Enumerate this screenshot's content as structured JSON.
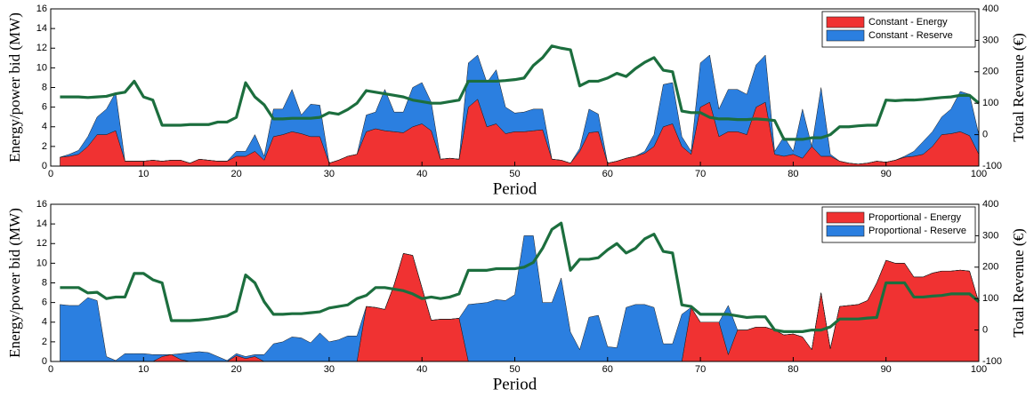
{
  "chart_data": [
    {
      "type": "area",
      "x": [
        1,
        2,
        3,
        4,
        5,
        6,
        7,
        8,
        9,
        10,
        11,
        12,
        13,
        14,
        15,
        16,
        17,
        18,
        19,
        20,
        21,
        22,
        23,
        24,
        25,
        26,
        27,
        28,
        29,
        30,
        31,
        32,
        33,
        34,
        35,
        36,
        37,
        38,
        39,
        40,
        41,
        42,
        43,
        44,
        45,
        46,
        47,
        48,
        49,
        50,
        51,
        52,
        53,
        54,
        55,
        56,
        57,
        58,
        59,
        60,
        61,
        62,
        63,
        64,
        65,
        66,
        67,
        68,
        69,
        70,
        71,
        72,
        73,
        74,
        75,
        76,
        77,
        78,
        79,
        80,
        81,
        82,
        83,
        84,
        85,
        86,
        87,
        88,
        89,
        90,
        91,
        92,
        93,
        94,
        95,
        96,
        97,
        98,
        99,
        100
      ],
      "xlabel": "Period",
      "ylabel": "Energy/power bid (MW)",
      "y2label": "Total Revenue (€)",
      "xlim": [
        0,
        100
      ],
      "xticks": [
        0,
        10,
        20,
        30,
        40,
        50,
        60,
        70,
        80,
        90,
        100
      ],
      "ylim": [
        0,
        16
      ],
      "yticks": [
        0,
        2,
        4,
        6,
        8,
        10,
        12,
        14,
        16
      ],
      "y2lim": [
        -100,
        400
      ],
      "y2ticks": [
        -100,
        0,
        100,
        200,
        300,
        400
      ],
      "legend": "upper right",
      "series": [
        {
          "name": "Constant - Energy",
          "color": "#f03232",
          "values": [
            0.9,
            1.0,
            1.2,
            2.0,
            3.2,
            3.2,
            3.6,
            0.5,
            0.5,
            0.5,
            0.6,
            0.5,
            0.6,
            0.6,
            0.3,
            0.7,
            0.6,
            0.5,
            0.5,
            1.0,
            1.0,
            1.5,
            0.6,
            3.0,
            3.2,
            3.5,
            3.3,
            3.0,
            3.0,
            0.3,
            0.6,
            1.0,
            1.2,
            3.5,
            3.8,
            3.6,
            3.5,
            3.4,
            4.0,
            4.3,
            3.6,
            0.7,
            0.8,
            0.7,
            6.0,
            6.8,
            4.0,
            4.3,
            3.3,
            3.5,
            3.5,
            3.6,
            3.7,
            0.7,
            0.6,
            0.3,
            1.5,
            3.4,
            3.5,
            0.3,
            0.5,
            0.8,
            1.0,
            1.3,
            2.0,
            4.0,
            4.3,
            2.0,
            1.2,
            6.0,
            6.5,
            3.0,
            3.5,
            3.5,
            3.2,
            6.0,
            6.5,
            1.2,
            1.0,
            1.2,
            0.8,
            2.0,
            1.0,
            1.0,
            0.5,
            0.3,
            0.2,
            0.3,
            0.5,
            0.4,
            0.6,
            0.9,
            1.0,
            1.2,
            2.0,
            3.2,
            3.3,
            3.5,
            3.1,
            1.2
          ]
        },
        {
          "name": "Constant - Reserve",
          "color": "#2b7fe0",
          "values": [
            0,
            0.2,
            0.4,
            1.0,
            1.8,
            2.6,
            3.9,
            0,
            0,
            0,
            0,
            0,
            0,
            0,
            0,
            0,
            0,
            0,
            0,
            0.5,
            0.5,
            1.7,
            0.4,
            2.8,
            2.6,
            4.3,
            1.9,
            3.3,
            3.2,
            0,
            0,
            0,
            0,
            1.7,
            1.7,
            4.2,
            2.0,
            2.1,
            4.0,
            4.2,
            2.9,
            0,
            0,
            0,
            4.5,
            4.5,
            4.5,
            5.5,
            2.7,
            1.9,
            2.0,
            2.2,
            2.1,
            0,
            0,
            0,
            0.3,
            2.4,
            1.8,
            0,
            0,
            0,
            0,
            0.2,
            1.2,
            4.3,
            4.2,
            1.0,
            0.3,
            4.5,
            4.8,
            2.8,
            4.3,
            4.3,
            4.1,
            4.3,
            4.8,
            0.3,
            2.0,
            0.3,
            5.0,
            0,
            7.0,
            0.2,
            0,
            0,
            0,
            0,
            0,
            0,
            0,
            0.1,
            0.5,
            1.3,
            1.5,
            1.8,
            2.5,
            4.1,
            4.2,
            2.0
          ]
        },
        {
          "color": "#1c6e3e",
          "axis": "y2",
          "values": [
            120,
            120,
            120,
            118,
            120,
            122,
            130,
            135,
            170,
            120,
            110,
            30,
            30,
            30,
            32,
            32,
            32,
            40,
            40,
            55,
            165,
            120,
            95,
            50,
            50,
            52,
            52,
            52,
            55,
            70,
            65,
            80,
            100,
            140,
            135,
            130,
            125,
            120,
            110,
            105,
            100,
            100,
            105,
            110,
            170,
            170,
            170,
            170,
            172,
            175,
            180,
            220,
            245,
            282,
            275,
            270,
            155,
            170,
            170,
            180,
            195,
            185,
            210,
            230,
            245,
            205,
            200,
            75,
            70,
            70,
            55,
            50,
            50,
            48,
            48,
            50,
            48,
            45,
            -15,
            -15,
            -15,
            -10,
            -10,
            0,
            25,
            25,
            28,
            30,
            30,
            110,
            108,
            110,
            110,
            112,
            115,
            118,
            120,
            125,
            125,
            100
          ]
        }
      ]
    },
    {
      "type": "area",
      "x": [
        1,
        2,
        3,
        4,
        5,
        6,
        7,
        8,
        9,
        10,
        11,
        12,
        13,
        14,
        15,
        16,
        17,
        18,
        19,
        20,
        21,
        22,
        23,
        24,
        25,
        26,
        27,
        28,
        29,
        30,
        31,
        32,
        33,
        34,
        35,
        36,
        37,
        38,
        39,
        40,
        41,
        42,
        43,
        44,
        45,
        46,
        47,
        48,
        49,
        50,
        51,
        52,
        53,
        54,
        55,
        56,
        57,
        58,
        59,
        60,
        61,
        62,
        63,
        64,
        65,
        66,
        67,
        68,
        69,
        70,
        71,
        72,
        73,
        74,
        75,
        76,
        77,
        78,
        79,
        80,
        81,
        82,
        83,
        84,
        85,
        86,
        87,
        88,
        89,
        90,
        91,
        92,
        93,
        94,
        95,
        96,
        97,
        98,
        99,
        100
      ],
      "xlabel": "Period",
      "ylabel": "Energy/power bid (MW)",
      "y2label": "Total Revenue (€)",
      "xlim": [
        0,
        100
      ],
      "xticks": [
        0,
        10,
        20,
        30,
        40,
        50,
        60,
        70,
        80,
        90,
        100
      ],
      "ylim": [
        0,
        16
      ],
      "yticks": [
        0,
        2,
        4,
        6,
        8,
        10,
        12,
        14,
        16
      ],
      "y2lim": [
        -100,
        400
      ],
      "y2ticks": [
        -100,
        0,
        100,
        200,
        300,
        400
      ],
      "legend": "upper right",
      "series": [
        {
          "name": "Proportional - Energy",
          "color": "#f03232",
          "values": [
            0,
            0,
            0,
            0,
            0,
            0,
            0,
            0,
            0,
            0,
            0,
            0.5,
            0.7,
            0.2,
            0,
            0,
            0,
            0,
            0,
            0.6,
            0.3,
            0.5,
            0,
            0,
            0,
            0,
            0,
            0,
            0,
            0,
            0,
            0,
            0,
            5.6,
            5.5,
            5.3,
            7.8,
            11.0,
            10.8,
            7.5,
            4.2,
            4.3,
            4.3,
            4.4,
            0,
            0,
            0,
            0,
            0,
            0,
            0,
            0,
            0,
            0,
            0,
            0,
            0,
            0,
            0,
            0,
            0,
            0,
            0,
            0,
            0,
            0,
            0,
            0,
            5.5,
            4.0,
            4.0,
            4.0,
            0.7,
            3.2,
            3.2,
            3.5,
            3.5,
            3.2,
            2.7,
            2.8,
            2.5,
            1.2,
            7.0,
            1.3,
            5.6,
            5.7,
            5.8,
            6.2,
            8.0,
            10.3,
            10.0,
            10.0,
            8.6,
            8.6,
            9.0,
            9.2,
            9.2,
            9.3,
            9.2,
            6.0
          ]
        },
        {
          "name": "Proportional - Reserve",
          "color": "#2b7fe0",
          "values": [
            5.8,
            5.7,
            5.7,
            6.5,
            6.2,
            0.5,
            0.1,
            0.8,
            0.8,
            0.8,
            0.7,
            0.2,
            0,
            0.6,
            0.9,
            1.0,
            0.9,
            0.5,
            0.1,
            0.2,
            0.2,
            0.2,
            0.7,
            1.8,
            2.0,
            2.5,
            2.4,
            1.9,
            2.9,
            2.0,
            2.2,
            2.6,
            2.6,
            0,
            0,
            0,
            0,
            0,
            0,
            0,
            0,
            0,
            0,
            0,
            5.8,
            5.9,
            6.0,
            6.3,
            6.2,
            6.8,
            12.8,
            12.8,
            6.0,
            6.0,
            8.5,
            3.0,
            1.2,
            4.5,
            4.7,
            1.5,
            1.4,
            5.5,
            5.8,
            5.8,
            5.5,
            1.8,
            1.8,
            4.8,
            0,
            0,
            0,
            0,
            5.0,
            0,
            0,
            0,
            0,
            0,
            0,
            0,
            0,
            0,
            0,
            0,
            0,
            0,
            0,
            0,
            0,
            0,
            0,
            0,
            0,
            0,
            0,
            0,
            0,
            0,
            0,
            0
          ]
        },
        {
          "color": "#1c6e3e",
          "axis": "y2",
          "values": [
            135,
            135,
            135,
            118,
            120,
            100,
            105,
            105,
            180,
            180,
            160,
            150,
            30,
            30,
            30,
            32,
            35,
            40,
            45,
            60,
            175,
            150,
            90,
            50,
            50,
            52,
            52,
            55,
            58,
            70,
            75,
            80,
            100,
            110,
            135,
            135,
            130,
            125,
            115,
            100,
            105,
            100,
            105,
            115,
            190,
            190,
            190,
            195,
            195,
            195,
            200,
            215,
            260,
            320,
            340,
            190,
            225,
            225,
            230,
            255,
            275,
            245,
            260,
            290,
            305,
            250,
            245,
            80,
            75,
            50,
            50,
            50,
            50,
            45,
            40,
            42,
            42,
            0,
            -5,
            -5,
            -5,
            0,
            0,
            10,
            35,
            35,
            35,
            38,
            40,
            150,
            150,
            150,
            105,
            105,
            108,
            110,
            115,
            115,
            115,
            90
          ]
        }
      ]
    }
  ]
}
